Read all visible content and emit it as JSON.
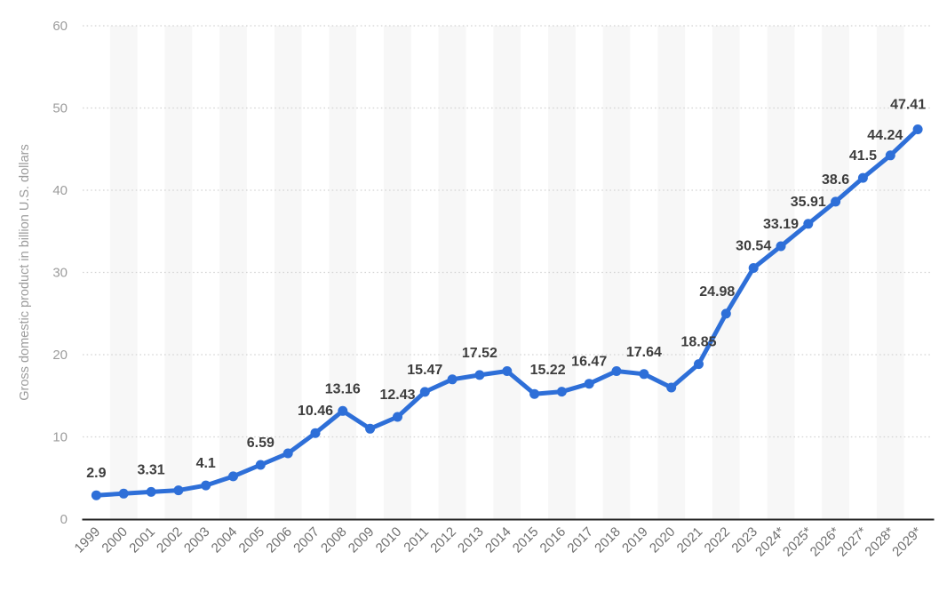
{
  "chart_data": {
    "type": "line",
    "title": "",
    "xlabel": "",
    "ylabel": "Gross domestic product in billion U.S. dollars",
    "categories": [
      "1999",
      "2000",
      "2001",
      "2002",
      "2003",
      "2004",
      "2005",
      "2006",
      "2007",
      "2008",
      "2009",
      "2010",
      "2011",
      "2012",
      "2013",
      "2014",
      "2015",
      "2016",
      "2017",
      "2018",
      "2019",
      "2020",
      "2021",
      "2022",
      "2023",
      "2024*",
      "2025*",
      "2026*",
      "2027*",
      "2028*",
      "2029*"
    ],
    "series": [
      {
        "name": "Gross domestic product in billion U.S. dollars",
        "values": [
          2.9,
          3.1,
          3.31,
          3.5,
          4.1,
          5.2,
          6.59,
          8.0,
          10.46,
          13.16,
          11.0,
          12.43,
          15.47,
          17.0,
          17.52,
          18.0,
          15.22,
          15.5,
          16.47,
          18.0,
          17.64,
          16.0,
          18.85,
          24.98,
          30.54,
          33.19,
          35.91,
          38.6,
          41.5,
          44.24,
          47.41
        ],
        "point_labels": [
          "2.9",
          "",
          "3.31",
          "",
          "4.1",
          "",
          "6.59",
          "",
          "10.46",
          "13.16",
          "",
          "12.43",
          "15.47",
          "",
          "17.52",
          "",
          "15.22",
          "",
          "16.47",
          "",
          "17.64",
          "",
          "18.85",
          "24.98",
          "30.54",
          "33.19",
          "35.91",
          "38.6",
          "41.5",
          "44.24",
          "47.41"
        ]
      }
    ],
    "ylim": [
      0,
      60
    ],
    "yticks": [
      0,
      10,
      20,
      30,
      40,
      50,
      60
    ],
    "grid": "horizontal-dotted",
    "legend": "none",
    "background_bands": "alternating-vertical",
    "colors": {
      "line": "#2e6fd8",
      "point": "#2e6fd8",
      "data_label": "#3d3d3d",
      "y_tick_label": "#9c9c9c",
      "x_tick_label": "#6f6f6f",
      "y_axis_title": "#9c9c9c",
      "gridline": "#d4d4d4",
      "axis_line": "#222222",
      "stripe": "#f7f7f7",
      "background": "#ffffff"
    }
  }
}
